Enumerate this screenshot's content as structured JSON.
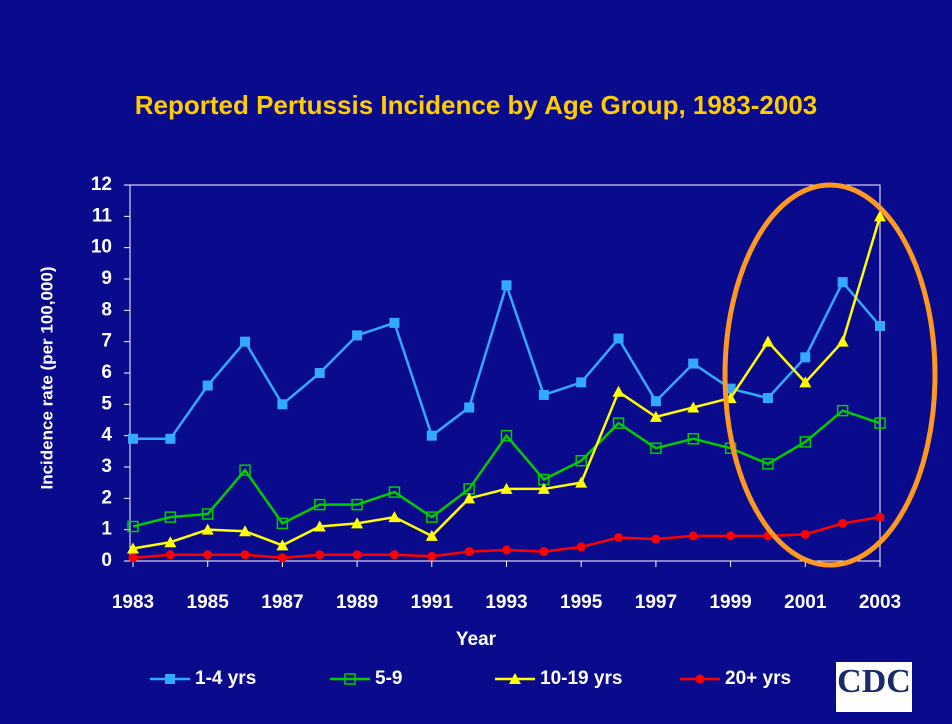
{
  "chart_data": {
    "type": "line",
    "title": "Reported Pertussis Incidence by Age Group, 1983-2003",
    "xlabel": "Year",
    "ylabel": "Incidence rate (per 100,000)",
    "x": [
      1983,
      1984,
      1985,
      1986,
      1987,
      1988,
      1989,
      1990,
      1991,
      1992,
      1993,
      1994,
      1995,
      1996,
      1997,
      1998,
      1999,
      2000,
      2001,
      2002,
      2003
    ],
    "series": [
      {
        "name": "1-4 yrs",
        "color": "#33aaff",
        "marker": "square",
        "values": [
          3.9,
          3.9,
          5.6,
          7.0,
          5.0,
          6.0,
          7.2,
          7.6,
          4.0,
          4.9,
          8.8,
          5.3,
          5.7,
          7.1,
          5.1,
          6.3,
          5.5,
          5.2,
          6.5,
          8.9,
          7.5
        ]
      },
      {
        "name": "5-9",
        "color": "#00cc00",
        "marker": "square-open",
        "values": [
          1.1,
          1.4,
          1.5,
          2.9,
          1.2,
          1.8,
          1.8,
          2.2,
          1.4,
          2.3,
          4.0,
          2.6,
          3.2,
          4.4,
          3.6,
          3.9,
          3.6,
          3.1,
          3.8,
          4.8,
          4.4
        ]
      },
      {
        "name": "10-19 yrs",
        "color": "#ffff00",
        "marker": "triangle",
        "values": [
          0.4,
          0.6,
          1.0,
          0.95,
          0.5,
          1.1,
          1.2,
          1.4,
          0.8,
          2.0,
          2.3,
          2.3,
          2.5,
          5.4,
          4.6,
          4.9,
          5.2,
          7.0,
          5.7,
          7.0,
          11.0
        ]
      },
      {
        "name": "20+ yrs",
        "color": "#ff0000",
        "marker": "circle",
        "values": [
          0.1,
          0.2,
          0.2,
          0.2,
          0.1,
          0.2,
          0.2,
          0.2,
          0.15,
          0.3,
          0.35,
          0.3,
          0.45,
          0.75,
          0.7,
          0.8,
          0.8,
          0.8,
          0.85,
          1.2,
          1.4
        ]
      }
    ],
    "xlim": [
      1983,
      2003
    ],
    "xticks": [
      1983,
      1985,
      1987,
      1989,
      1991,
      1993,
      1995,
      1997,
      1999,
      2001,
      2003
    ],
    "ylim": [
      0,
      12
    ],
    "yticks": [
      0,
      1,
      2,
      3,
      4,
      5,
      6,
      7,
      8,
      9,
      10,
      11,
      12
    ],
    "legend": "bottom",
    "logo": "CDC"
  }
}
